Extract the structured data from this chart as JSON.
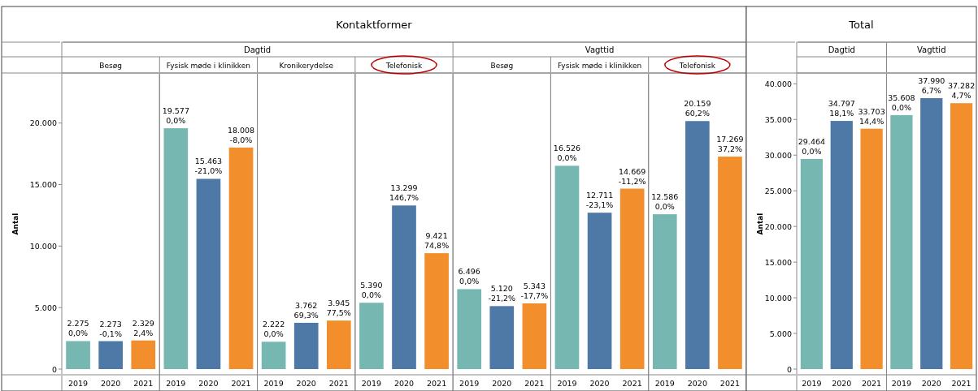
{
  "chart_data": [
    {
      "type": "bar",
      "title": "Kontaktformer",
      "ylabel": "Antal",
      "categories": [
        "2019",
        "2020",
        "2021",
        "2019",
        "2020",
        "2021",
        "2019",
        "2020",
        "2021",
        "2019",
        "2020",
        "2021",
        "2019",
        "2020",
        "2021",
        "2019",
        "2020",
        "2021",
        "2019",
        "2020",
        "2021"
      ],
      "values": [
        2275,
        2273,
        2329,
        19577,
        15463,
        18008,
        2222,
        3762,
        3945,
        5390,
        13299,
        9421,
        6496,
        5120,
        5343,
        16526,
        12711,
        14669,
        12586,
        20159,
        17269
      ],
      "colors": [
        "#76b7b2",
        "#4e79a7",
        "#f28e2b",
        "#76b7b2",
        "#4e79a7",
        "#f28e2b",
        "#76b7b2",
        "#4e79a7",
        "#f28e2b",
        "#76b7b2",
        "#4e79a7",
        "#f28e2b",
        "#76b7b2",
        "#4e79a7",
        "#f28e2b",
        "#76b7b2",
        "#4e79a7",
        "#f28e2b",
        "#76b7b2",
        "#4e79a7",
        "#f28e2b"
      ],
      "value_labels": [
        "2.275\n0,0%",
        "2.273\n-0,1%",
        "2.329\n2,4%",
        "19.577\n0,0%",
        "15.463\n-21,0%",
        "18.008\n-8,0%",
        "2.222\n0,0%",
        "3.762\n69,3%",
        "3.945\n77,5%",
        "5.390\n0,0%",
        "13.299\n146,7%",
        "9.421\n74,8%",
        "6.496\n0,0%",
        "5.120\n-21,2%",
        "5.343\n-17,7%",
        "16.526\n0,0%",
        "12.711\n-23,1%",
        "14.669\n-11,2%",
        "12.586\n0,0%",
        "20.159\n60,2%",
        "17.269\n37,2%"
      ],
      "annotations": [
        "Dagtid",
        "Vagttid",
        "Besøg",
        "Fysisk møde i klinikken",
        "Kronikerydelse",
        "Telefonisk",
        "Besøg",
        "Fysisk møde i klinikken",
        "Telefonisk"
      ],
      "ylim": [
        0,
        24000
      ],
      "yticks": [
        {
          "value": 0,
          "label": "0"
        },
        {
          "value": 5000,
          "label": "5.000"
        },
        {
          "value": 10000,
          "label": "10.000"
        },
        {
          "value": 15000,
          "label": "15.000"
        },
        {
          "value": 20000,
          "label": "20.000"
        }
      ],
      "grid": false,
      "legend": false
    },
    {
      "type": "bar",
      "title": "Total",
      "ylabel": "Antal",
      "categories": [
        "2019",
        "2020",
        "2021",
        "2019",
        "2020",
        "2021"
      ],
      "values": [
        29464,
        34797,
        33703,
        35608,
        37990,
        37282
      ],
      "colors": [
        "#76b7b2",
        "#4e79a7",
        "#f28e2b",
        "#76b7b2",
        "#4e79a7",
        "#f28e2b"
      ],
      "value_labels": [
        "29.464\n0,0%",
        "34.797\n18,1%",
        "33.703\n14,4%",
        "35.608\n0,0%",
        "37.990\n6,7%",
        "37.282\n4,7%"
      ],
      "annotations": [
        "Dagtid",
        "Vagttid"
      ],
      "ylim": [
        0,
        41400
      ],
      "yticks": [
        {
          "value": 0,
          "label": "0"
        },
        {
          "value": 5000,
          "label": "5.000"
        },
        {
          "value": 10000,
          "label": "10.000"
        },
        {
          "value": 15000,
          "label": "15.000"
        },
        {
          "value": 20000,
          "label": "20.000"
        },
        {
          "value": 25000,
          "label": "25.000"
        },
        {
          "value": 30000,
          "label": "30.000"
        },
        {
          "value": 35000,
          "label": "35.000"
        },
        {
          "value": 40000,
          "label": "40.000"
        }
      ],
      "grid": false,
      "legend": false
    }
  ]
}
